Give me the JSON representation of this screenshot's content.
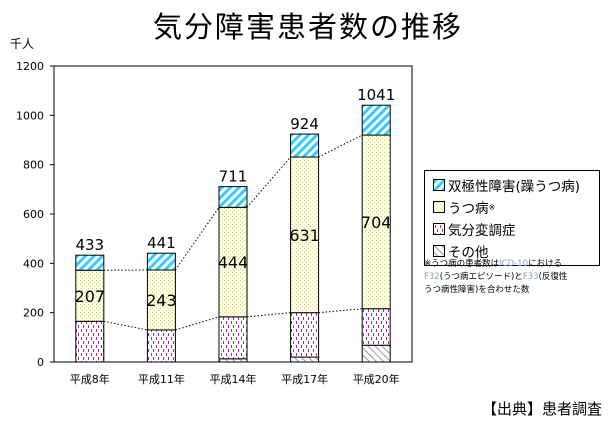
{
  "title": "気分障害患者数の推移",
  "chart_data": {
    "type": "bar",
    "stacked": true,
    "title": "気分障害患者数の推移",
    "ylabel": "千人",
    "ylim": [
      0,
      1200
    ],
    "yticks": [
      0,
      200,
      400,
      600,
      800,
      1000,
      1200
    ],
    "categories": [
      "平成8年",
      "平成11年",
      "平成14年",
      "平成17年",
      "平成20年"
    ],
    "series": [
      {
        "name": "その他",
        "values": [
          0,
          0,
          13,
          20,
          68
        ],
        "color": "#ffffff"
      },
      {
        "name": "気分変調症",
        "values": [
          165,
          130,
          170,
          180,
          148
        ],
        "color": "#cc99cc"
      },
      {
        "name": "うつ病",
        "values": [
          207,
          243,
          444,
          631,
          704
        ],
        "color": "#ffffcc"
      },
      {
        "name": "双極性障害(躁うつ病)",
        "values": [
          61,
          68,
          84,
          93,
          121
        ],
        "color": "#33ccff"
      }
    ],
    "data_labels": {
      "うつ病": [
        "207",
        "243",
        "444",
        "631",
        "704"
      ],
      "totals": [
        "433",
        "441",
        "711",
        "924",
        "1041"
      ]
    },
    "legend_position": "right",
    "grid": false
  },
  "legend": {
    "items": [
      {
        "label": "双極性障害(躁うつ病)",
        "sup": ""
      },
      {
        "label": "うつ病",
        "sup": "※"
      },
      {
        "label": "気分変調症",
        "sup": ""
      },
      {
        "label": "その他",
        "sup": ""
      }
    ]
  },
  "note": {
    "line1a": "※うつ病の患者数は",
    "line1b": "ICD-10",
    "line1c": "における",
    "line2a": "F32",
    "line2b": "(うつ病エピソード)と",
    "line2c": "F33",
    "line2d": "(反復性",
    "line3": "うつ病性障害)を合わせた数"
  },
  "source": "【出典】患者調査"
}
